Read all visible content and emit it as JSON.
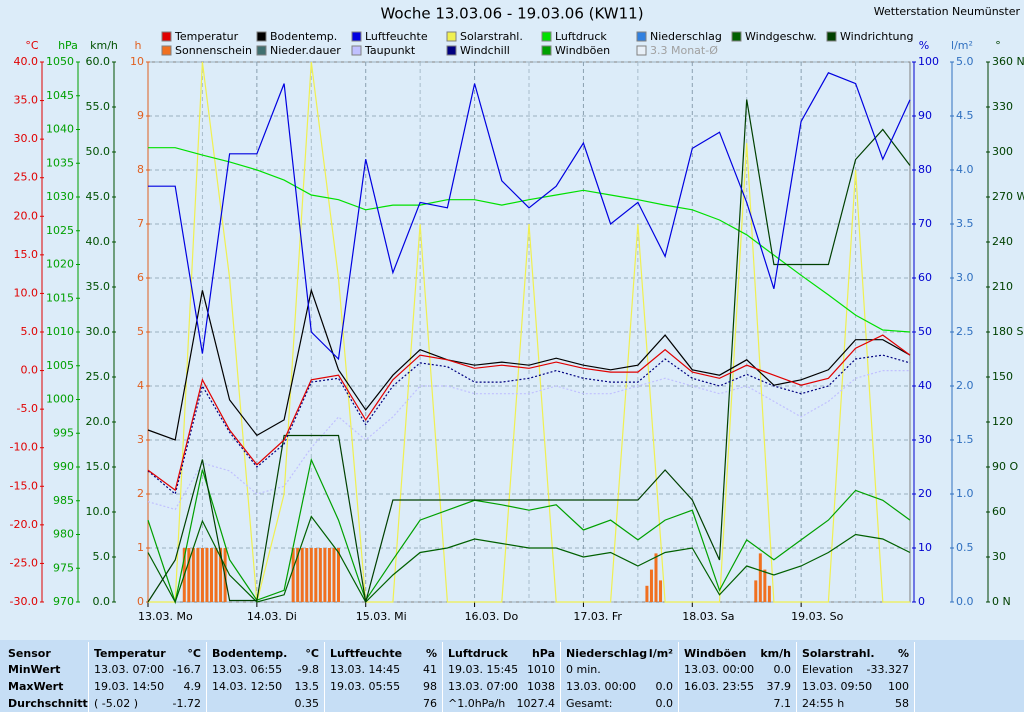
{
  "chart_data": {
    "type": "line",
    "title": "Woche 13.03.06 - 19.03.06 (KW11)",
    "station": "Wetterstation Neumünster",
    "xlim": [
      0,
      168
    ],
    "xticks": [
      {
        "value": 0,
        "label": "13.03. Mo"
      },
      {
        "value": 24,
        "label": "14.03. Di"
      },
      {
        "value": 48,
        "label": "15.03. Mi"
      },
      {
        "value": 72,
        "label": "16.03. Do"
      },
      {
        "value": 96,
        "label": "17.03. Fr"
      },
      {
        "value": 120,
        "label": "18.03. Sa"
      },
      {
        "value": 144,
        "label": "19.03. So"
      }
    ],
    "grid": true,
    "axes": [
      {
        "unit": "°C",
        "color": "#e00000",
        "side": "left",
        "lim": [
          -30,
          40
        ],
        "ticks": [
          {
            "value": 40,
            "label": "40.0"
          },
          {
            "value": 35,
            "label": "35.0"
          },
          {
            "value": 30,
            "label": "30.0"
          },
          {
            "value": 25,
            "label": "25.0"
          },
          {
            "value": 20,
            "label": "20.0"
          },
          {
            "value": 15,
            "label": "15.0"
          },
          {
            "value": 10,
            "label": "10.0"
          },
          {
            "value": 5,
            "label": "5.0"
          },
          {
            "value": 0,
            "label": "0.0"
          },
          {
            "value": -5,
            "label": "-5.0"
          },
          {
            "value": -10,
            "label": "-10.0"
          },
          {
            "value": -15,
            "label": "-15.0"
          },
          {
            "value": -20,
            "label": "-20.0"
          },
          {
            "value": -25,
            "label": "-25.0"
          },
          {
            "value": -30,
            "label": "-30.0"
          }
        ]
      },
      {
        "unit": "hPa",
        "color": "#00a000",
        "side": "left",
        "lim": [
          970,
          1050
        ],
        "ticks": [
          1050,
          1045,
          1040,
          1035,
          1030,
          1025,
          1020,
          1015,
          1010,
          1005,
          1000,
          995,
          990,
          985,
          980,
          975,
          970
        ]
      },
      {
        "unit": "km/h",
        "color": "#005000",
        "side": "left",
        "lim": [
          0,
          60
        ],
        "ticks": [
          {
            "value": 60,
            "label": "60.0"
          },
          {
            "value": 55,
            "label": "55.0"
          },
          {
            "value": 50,
            "label": "50.0"
          },
          {
            "value": 45,
            "label": "45.0"
          },
          {
            "value": 40,
            "label": "40.0"
          },
          {
            "value": 35,
            "label": "35.0"
          },
          {
            "value": 30,
            "label": "30.0"
          },
          {
            "value": 25,
            "label": "25.0"
          },
          {
            "value": 20,
            "label": "20.0"
          },
          {
            "value": 15,
            "label": "15.0"
          },
          {
            "value": 10,
            "label": "10.0"
          },
          {
            "value": 5,
            "label": "5.0"
          },
          {
            "value": 0,
            "label": "0.0"
          }
        ]
      },
      {
        "unit": "h",
        "color": "#e06020",
        "side": "left",
        "lim": [
          0,
          10
        ],
        "ticks": [
          10,
          9,
          8,
          7,
          6,
          5,
          4,
          3,
          2,
          1,
          0
        ]
      },
      {
        "unit": "%",
        "color": "#0000d0",
        "side": "right",
        "lim": [
          0,
          100
        ],
        "ticks": [
          100,
          90,
          80,
          70,
          60,
          50,
          40,
          30,
          20,
          10,
          0
        ]
      },
      {
        "unit": "l/m²",
        "color": "#3070c0",
        "side": "right",
        "lim": [
          0,
          5
        ],
        "ticks": [
          {
            "value": 5,
            "label": "5.0"
          },
          {
            "value": 4.5,
            "label": "4.5"
          },
          {
            "value": 4,
            "label": "4.0"
          },
          {
            "value": 3.5,
            "label": "3.5"
          },
          {
            "value": 3,
            "label": "3.0"
          },
          {
            "value": 2.5,
            "label": "2.5"
          },
          {
            "value": 2,
            "label": "2.0"
          },
          {
            "value": 1.5,
            "label": "1.5"
          },
          {
            "value": 1,
            "label": "1.0"
          },
          {
            "value": 0.5,
            "label": "0.5"
          },
          {
            "value": 0,
            "label": "0.0"
          }
        ]
      },
      {
        "unit": "°",
        "color": "#004000",
        "side": "right",
        "lim": [
          0,
          360
        ],
        "ticks": [
          {
            "value": 360,
            "label": "360 N"
          },
          330,
          300,
          {
            "value": 270,
            "label": "270 W"
          },
          240,
          210,
          {
            "value": 180,
            "label": "180 S"
          },
          150,
          120,
          {
            "value": 90,
            "label": "90 O"
          },
          60,
          30,
          {
            "value": 0,
            "label": "0 N"
          }
        ]
      }
    ],
    "legend": [
      {
        "name": "Temperatur",
        "color": "#e00000"
      },
      {
        "name": "Bodentemp.",
        "color": "#000000"
      },
      {
        "name": "Luftfeuchte",
        "color": "#0000e0"
      },
      {
        "name": "Solarstrahl.",
        "color": "#f0f050"
      },
      {
        "name": "Luftdruck",
        "color": "#00e000"
      },
      {
        "name": "Niederschlag",
        "color": "#3080e0"
      },
      {
        "name": "Windgeschw.",
        "color": "#006000"
      },
      {
        "name": "Windrichtung",
        "color": "#004000"
      },
      {
        "name": "Sonnenschein",
        "color": "#f07020"
      },
      {
        "name": "Nieder.dauer",
        "color": "#407070"
      },
      {
        "name": "Taupunkt",
        "color": "#c0c0ff"
      },
      {
        "name": "Windchill",
        "color": "#000080"
      },
      {
        "name": "Windböen",
        "color": "#00a000"
      },
      {
        "name": "3.3 Monat-Ø",
        "color": "#e8f0f8"
      }
    ],
    "x": [
      0,
      6,
      12,
      18,
      24,
      30,
      36,
      42,
      48,
      54,
      60,
      66,
      72,
      78,
      84,
      90,
      96,
      102,
      108,
      114,
      120,
      126,
      132,
      138,
      144,
      150,
      156,
      162,
      168
    ],
    "series": [
      {
        "legend": 3,
        "axis": 4,
        "values": [
          0,
          0,
          100,
          60,
          0,
          20,
          100,
          60,
          0,
          0,
          70,
          0,
          0,
          0,
          70,
          0,
          0,
          0,
          70,
          0,
          0,
          0,
          85,
          0,
          0,
          0,
          80,
          0,
          0
        ]
      },
      {
        "legend": 10,
        "axis": 0,
        "dash": "2,2",
        "values": [
          -17,
          -18,
          -12,
          -13,
          -16,
          -15,
          -10,
          -6,
          -9,
          -6,
          -2,
          -2,
          -3,
          -3,
          -3,
          -2,
          -3,
          -3,
          -2,
          -1,
          -2,
          -3,
          -2,
          -4,
          -6,
          -4,
          -1,
          0,
          0
        ]
      },
      {
        "legend": 4,
        "axis": 1,
        "values": [
          1037.3,
          1037.3,
          1036.2,
          1035.2,
          1034,
          1032.5,
          1030.3,
          1029.6,
          1028.1,
          1028.8,
          1028.8,
          1029.6,
          1029.6,
          1028.8,
          1029.6,
          1030.3,
          1031,
          1030.3,
          1029.6,
          1028.8,
          1028.1,
          1026.6,
          1024.4,
          1021.4,
          1018.4,
          1015.5,
          1012.5,
          1010.3,
          1010
        ]
      },
      {
        "legend": 12,
        "axis": 2,
        "values": [
          9.1,
          0,
          14.7,
          4.7,
          0.2,
          1.3,
          15.8,
          9.1,
          0.2,
          4.7,
          9.1,
          10.2,
          11.3,
          10.8,
          10.2,
          10.8,
          8,
          9.1,
          6.9,
          9.1,
          10.2,
          1.3,
          6.9,
          4.7,
          6.9,
          9.1,
          12.4,
          11.3,
          9.1
        ]
      },
      {
        "legend": 6,
        "axis": 2,
        "values": [
          5.5,
          0,
          9,
          3,
          0,
          0.8,
          9.5,
          5.5,
          0,
          3,
          5.5,
          6,
          7,
          6.5,
          6,
          6,
          5,
          5.5,
          4,
          5.5,
          6,
          0.8,
          4,
          3,
          4,
          5.5,
          7.5,
          7,
          5.5
        ]
      },
      {
        "legend": 7,
        "axis": 6,
        "values": [
          0,
          28,
          95,
          1,
          1,
          111,
          111,
          111,
          0,
          68,
          68,
          68,
          68,
          68,
          68,
          68,
          68,
          68,
          68,
          88,
          68,
          28,
          335,
          225,
          225,
          225,
          295,
          315,
          291
        ]
      },
      {
        "legend": 11,
        "axis": 0,
        "dash": "2,2",
        "values": [
          -13,
          -16,
          -2,
          -8,
          -12.5,
          -9.5,
          -1.5,
          -1,
          -7,
          -2,
          1,
          0.5,
          -1.5,
          -1.5,
          -1,
          0,
          -1,
          -1.5,
          -1.5,
          1.5,
          -1,
          -2,
          -0.5,
          -2,
          -3,
          -2,
          1.5,
          2,
          1
        ]
      },
      {
        "legend": 1,
        "axis": 0,
        "values": [
          -7.7,
          -9,
          10.4,
          -3.8,
          -8.4,
          -6.4,
          10.4,
          0.1,
          -5.1,
          -0.6,
          2.7,
          1.4,
          0.7,
          1.1,
          0.7,
          1.6,
          0.7,
          0.1,
          0.7,
          4.6,
          0.1,
          -0.6,
          1.4,
          -1.9,
          -1.2,
          0.1,
          4,
          4,
          2
        ]
      },
      {
        "legend": 0,
        "axis": 0,
        "values": [
          -12.9,
          -15.5,
          -1.2,
          -7.7,
          -12.2,
          -9,
          -1.2,
          -0.6,
          -6.4,
          -1.2,
          2,
          1.4,
          0.3,
          0.7,
          0.3,
          1.1,
          0.3,
          -0.2,
          -0.2,
          2.7,
          -0.2,
          -1,
          0.7,
          -0.6,
          -1.9,
          -1,
          2.9,
          4.6,
          2
        ]
      },
      {
        "legend": 2,
        "axis": 4,
        "values": [
          77,
          77,
          46,
          83,
          83,
          96,
          50,
          45,
          82,
          61,
          74,
          73,
          96,
          78,
          73,
          77,
          85,
          70,
          74,
          64,
          84,
          87,
          74,
          58,
          89,
          98,
          96,
          82,
          93
        ]
      }
    ],
    "bars": {
      "legend": 8,
      "axis": 3,
      "x": [
        8,
        9,
        10,
        11,
        12,
        13,
        14,
        15,
        16,
        17,
        32,
        33,
        34,
        35,
        36,
        37,
        38,
        39,
        40,
        41,
        42,
        110,
        111,
        112,
        113,
        134,
        135,
        136,
        137
      ],
      "values": [
        1,
        1,
        1,
        1,
        1,
        1,
        1,
        1,
        1,
        1,
        1,
        1,
        1,
        1,
        1,
        1,
        1,
        1,
        1,
        1,
        1,
        0.3,
        0.6,
        0.9,
        0.4,
        0.4,
        0.9,
        0.6,
        0.3
      ]
    }
  },
  "table": {
    "row_labels": [
      "Sensor",
      "MinWert",
      "MaxWert",
      "Durchschnitt"
    ],
    "blocks": [
      {
        "name": "Temperatur",
        "unit": "°C",
        "rows": [
          [
            "13.03.  07:00",
            "-16.7"
          ],
          [
            "19.03.  14:50",
            "4.9"
          ],
          [
            "( -5.02 )",
            "-1.72"
          ]
        ]
      },
      {
        "name": "Bodentemp.",
        "unit": "°C",
        "rows": [
          [
            "13.03.  06:55",
            "-9.8"
          ],
          [
            "14.03.  12:50",
            "13.5"
          ],
          [
            null,
            "0.35"
          ]
        ]
      },
      {
        "name": "Luftfeuchte",
        "unit": "%",
        "rows": [
          [
            "13.03.  14:45",
            "41"
          ],
          [
            "19.03.  05:55",
            "98"
          ],
          [
            null,
            "76"
          ]
        ]
      },
      {
        "name": "Luftdruck",
        "unit": "hPa",
        "rows": [
          [
            "19.03.  15:45",
            "1010"
          ],
          [
            "13.03.  07:00",
            "1038"
          ],
          [
            "^1.0hPa/h",
            "1027.4"
          ]
        ]
      },
      {
        "name": "Niederschlag",
        "unit": "l/m²",
        "rows": [
          [
            "0 min.",
            null
          ],
          [
            "13.03.  00:00",
            "0.0"
          ],
          [
            "Gesamt:",
            "0.0"
          ]
        ]
      },
      {
        "name": "Windböen",
        "unit": "km/h",
        "rows": [
          [
            "13.03.  00:00",
            "0.0"
          ],
          [
            "16.03.  23:55",
            "37.9"
          ],
          [
            null,
            "7.1"
          ]
        ]
      },
      {
        "name": "Solarstrahl.",
        "unit": "%",
        "rows": [
          [
            "Elevation",
            "-33.327"
          ],
          [
            "13.03.  09:50",
            "100"
          ],
          [
            "24:55 h",
            "58"
          ]
        ]
      }
    ]
  }
}
